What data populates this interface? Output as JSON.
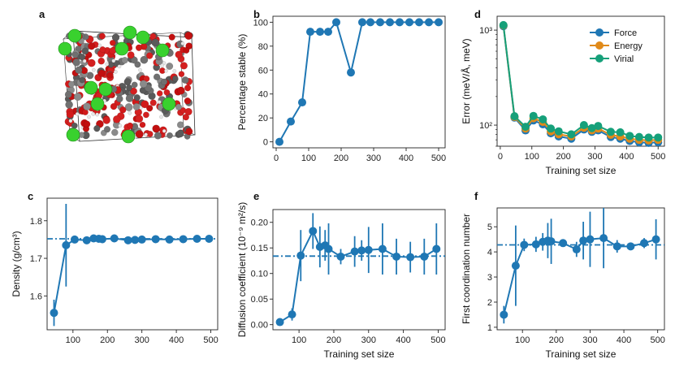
{
  "panel_labels": {
    "a": "a",
    "b": "b",
    "c": "c",
    "d": "d",
    "e": "e",
    "f": "f"
  },
  "chart_data": [
    {
      "id": "b",
      "type": "line",
      "xlabel": "",
      "ylabel": "Percentage stable (%)",
      "xlim": [
        -10,
        520
      ],
      "ylim": [
        -5,
        105
      ],
      "xticks": [
        0,
        100,
        200,
        300,
        400,
        500
      ],
      "yticks": [
        0,
        20,
        40,
        60,
        80,
        100
      ],
      "series": [
        {
          "name": "Stable",
          "color": "#1f77b4",
          "x": [
            10,
            45,
            80,
            105,
            135,
            160,
            185,
            230,
            265,
            290,
            320,
            350,
            380,
            410,
            440,
            470,
            500
          ],
          "y": [
            0,
            17,
            33,
            92,
            92,
            92,
            100,
            58,
            100,
            100,
            100,
            100,
            100,
            100,
            100,
            100,
            100
          ]
        }
      ]
    },
    {
      "id": "d",
      "type": "line",
      "xlabel": "Training set size",
      "ylabel": "Error (meV/Å, meV)",
      "yscale": "log",
      "xlim": [
        -10,
        520
      ],
      "ylim": [
        60,
        1400
      ],
      "xticks": [
        0,
        100,
        200,
        300,
        400,
        500
      ],
      "ytick_labels": [
        "10²",
        "10³"
      ],
      "legend": "top-right",
      "series": [
        {
          "name": "Force",
          "color": "#1f77b4",
          "x": [
            10,
            45,
            80,
            105,
            135,
            160,
            185,
            225,
            265,
            290,
            310,
            350,
            380,
            410,
            440,
            470,
            500
          ],
          "y": [
            1100,
            120,
            88,
            112,
            102,
            82,
            76,
            72,
            90,
            85,
            88,
            75,
            72,
            68,
            66,
            65,
            66
          ]
        },
        {
          "name": "Energy",
          "color": "#e08a1a",
          "x": [
            10,
            45,
            80,
            105,
            135,
            160,
            185,
            225,
            265,
            290,
            310,
            350,
            380,
            410,
            440,
            470,
            500
          ],
          "y": [
            1120,
            122,
            92,
            118,
            108,
            86,
            80,
            76,
            94,
            88,
            92,
            79,
            76,
            72,
            70,
            69,
            70
          ]
        },
        {
          "name": "Virial",
          "color": "#16a07a",
          "x": [
            10,
            45,
            80,
            105,
            135,
            160,
            185,
            225,
            265,
            290,
            310,
            350,
            380,
            410,
            440,
            470,
            500
          ],
          "y": [
            1130,
            124,
            96,
            125,
            115,
            92,
            86,
            80,
            100,
            93,
            98,
            85,
            84,
            77,
            75,
            74,
            74
          ]
        }
      ]
    },
    {
      "id": "c",
      "type": "scatter",
      "xlabel": "",
      "ylabel": "Density (g/cm³)",
      "xlim": [
        25,
        520
      ],
      "ylim": [
        1.51,
        1.86
      ],
      "xticks": [
        100,
        200,
        300,
        400,
        500
      ],
      "yticks": [
        1.6,
        1.7,
        1.8
      ],
      "reference": 1.752,
      "series": [
        {
          "name": "Density",
          "color": "#1f77b4",
          "x": [
            45,
            80,
            105,
            140,
            160,
            175,
            185,
            220,
            260,
            280,
            300,
            340,
            380,
            420,
            460,
            495
          ],
          "y": [
            1.555,
            1.735,
            1.75,
            1.748,
            1.753,
            1.752,
            1.751,
            1.753,
            1.748,
            1.749,
            1.75,
            1.751,
            1.75,
            1.751,
            1.752,
            1.752
          ],
          "err": [
            0.035,
            0.11,
            0.005,
            0.004,
            0.004,
            0.004,
            0.004,
            0.003,
            0.004,
            0.003,
            0.003,
            0.003,
            0.003,
            0.003,
            0.003,
            0.003
          ]
        }
      ]
    },
    {
      "id": "e",
      "type": "scatter",
      "xlabel": "Training set size",
      "ylabel": "Diffusion coefficient (10⁻⁹ m²/s)",
      "xlim": [
        25,
        520
      ],
      "ylim": [
        -0.01,
        0.225
      ],
      "xticks": [
        100,
        200,
        300,
        400,
        500
      ],
      "yticks": [
        0.0,
        0.05,
        0.1,
        0.15,
        0.2
      ],
      "ytick_labels": [
        "0.00",
        "0.05",
        "0.10",
        "0.15",
        "0.20"
      ],
      "reference": 0.134,
      "series": [
        {
          "name": "Diffusion",
          "color": "#1f77b4",
          "x": [
            45,
            80,
            105,
            140,
            160,
            175,
            185,
            220,
            260,
            280,
            300,
            340,
            380,
            420,
            460,
            495
          ],
          "y": [
            0.005,
            0.02,
            0.135,
            0.183,
            0.152,
            0.155,
            0.148,
            0.133,
            0.143,
            0.145,
            0.146,
            0.148,
            0.133,
            0.132,
            0.133,
            0.148
          ],
          "err": [
            0.003,
            0.012,
            0.05,
            0.035,
            0.04,
            0.03,
            0.05,
            0.015,
            0.03,
            0.02,
            0.045,
            0.05,
            0.035,
            0.03,
            0.035,
            0.05
          ]
        }
      ]
    },
    {
      "id": "f",
      "type": "scatter",
      "xlabel": "Training set size",
      "ylabel": "First coordination number",
      "xlim": [
        25,
        520
      ],
      "ylim": [
        0.9,
        5.75
      ],
      "xticks": [
        100,
        200,
        300,
        400,
        500
      ],
      "yticks": [
        1,
        2,
        3,
        4,
        5
      ],
      "reference": 4.28,
      "series": [
        {
          "name": "Coordination",
          "color": "#1f77b4",
          "x": [
            45,
            80,
            105,
            140,
            160,
            175,
            185,
            220,
            260,
            280,
            300,
            340,
            380,
            420,
            460,
            495
          ],
          "y": [
            1.5,
            3.45,
            4.28,
            4.3,
            4.4,
            4.45,
            4.42,
            4.35,
            4.1,
            4.45,
            4.5,
            4.55,
            4.22,
            4.22,
            4.35,
            4.5
          ],
          "err": [
            0.35,
            1.6,
            0.25,
            0.3,
            0.35,
            0.7,
            0.9,
            0.15,
            0.3,
            0.75,
            1.1,
            1.2,
            0.25,
            0.15,
            0.2,
            0.8
          ]
        }
      ]
    }
  ]
}
